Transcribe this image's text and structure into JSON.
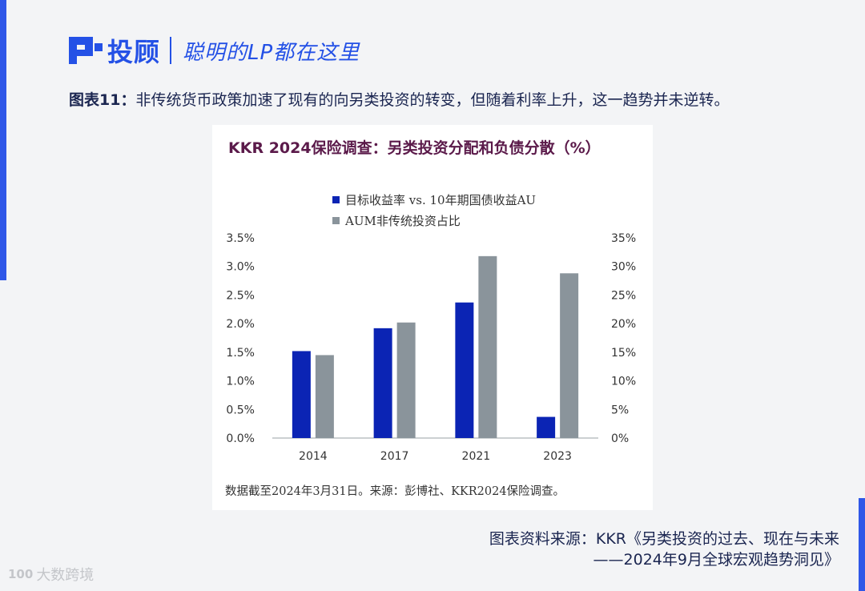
{
  "header": {
    "logo_text": "投顾",
    "slogan": "聪明的LP都在这里"
  },
  "figure": {
    "number": "图表11：",
    "caption": "非传统货币政策加速了现有的向另类投资的转变，但随着利率上升，这一趋势并未逆转。"
  },
  "chart_card": {
    "title": "KKR 2024保险调查：另类投资分配和负债分散（%）",
    "note": "数据截至2024年3月31日。来源：彭博社、KKR2024保险调查。"
  },
  "chart_data": {
    "type": "bar",
    "title": "KKR 2024保险调查：另类投资分配和负债分散（%）",
    "categories": [
      "2014",
      "2017",
      "2021",
      "2023"
    ],
    "series": [
      {
        "name": "目标收益率 vs. 10年期国债收益AU",
        "axis": "left",
        "color": "#0b24b4",
        "values": [
          1.52,
          1.92,
          2.37,
          0.37
        ]
      },
      {
        "name": "AUM非传统投资占比",
        "axis": "right",
        "color": "#8a949b",
        "values": [
          14.5,
          20.2,
          31.8,
          28.8
        ]
      }
    ],
    "y_left": {
      "ylim": [
        0,
        3.5
      ],
      "ticks": [
        "0.0%",
        "0.5%",
        "1.0%",
        "1.5%",
        "2.0%",
        "2.5%",
        "3.0%",
        "3.5%"
      ]
    },
    "y_right": {
      "ylim": [
        0,
        35
      ],
      "ticks": [
        "0%",
        "5%",
        "10%",
        "15%",
        "20%",
        "25%",
        "30%",
        "35%"
      ]
    },
    "grid": false,
    "legend_position": "top"
  },
  "source": {
    "line1": "图表资料来源：KKR《另类投资的过去、现在与未来",
    "line2": "——2024年9月全球宏观趋势洞见》"
  },
  "watermark": {
    "logo": "100",
    "text": "大数跨境"
  },
  "colors": {
    "brand_blue": "#2451e6",
    "series_blue": "#0b24b4",
    "series_gray": "#8a949b",
    "title_purple": "#5b1a4a"
  }
}
